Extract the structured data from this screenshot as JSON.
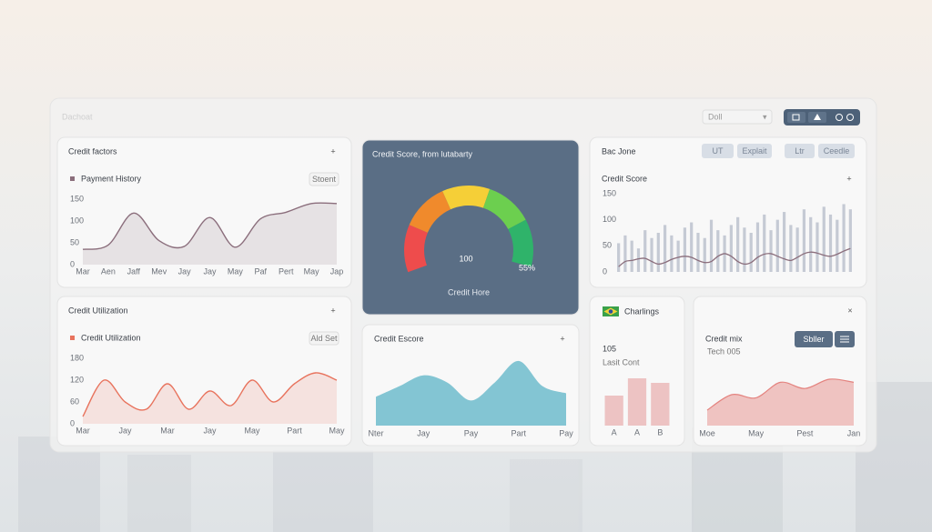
{
  "header": {
    "title": "Dachoat",
    "search": "Doll"
  },
  "chart_data": [
    {
      "type": "line",
      "title": "Credit factors",
      "action": "+",
      "button": "Stoent",
      "categories": [
        "Mar",
        "Aen",
        "Jaff",
        "Mev",
        "Jay",
        "Jay",
        "May",
        "Paf",
        "Pert",
        "May",
        "Jap"
      ],
      "series": [
        {
          "name": "Payment History",
          "color": "#8b6e7c",
          "values": [
            35,
            45,
            118,
            55,
            42,
            108,
            40,
            105,
            120,
            140,
            140
          ]
        }
      ],
      "ylim": [
        0,
        150
      ],
      "yticks": [
        0,
        50,
        100,
        150
      ]
    },
    {
      "type": "gauge",
      "title": "Credit Score, from lutabarty",
      "value": 100,
      "percent": {
        "value": 55,
        "label": "55%"
      },
      "caption": "Credit Hore",
      "colors": [
        "#ee4c4c",
        "#f08a2c",
        "#f5cf37",
        "#6ccf4f",
        "#2fb36a"
      ]
    },
    {
      "type": "bar-line",
      "header": "Bac Jone",
      "tabs": [
        "UT",
        "Explait",
        "Ltr",
        "Ceedle"
      ],
      "title": "Credit Score",
      "action": "+",
      "series": [
        {
          "color": "#c5cad4",
          "values": [
            55,
            70,
            60,
            45,
            80,
            65,
            75,
            90,
            70,
            60,
            85,
            95,
            75,
            65,
            100,
            80,
            70,
            90,
            105,
            85,
            75,
            95,
            110,
            80,
            100,
            115,
            90,
            85,
            120,
            105,
            95,
            125,
            110,
            100,
            130,
            120
          ]
        },
        {
          "color": "#8b6e7c",
          "values": [
            10,
            20,
            22,
            25,
            26,
            20,
            15,
            18,
            24,
            28,
            30,
            28,
            22,
            18,
            20,
            30,
            35,
            30,
            20,
            15,
            18,
            28,
            34,
            35,
            30,
            25,
            22,
            28,
            35,
            38,
            36,
            32,
            30,
            34,
            40,
            45
          ]
        }
      ],
      "ylim": [
        0,
        150
      ],
      "yticks": [
        0,
        50,
        100,
        150
      ]
    },
    {
      "type": "line",
      "title": "Credit Utilization",
      "action": "+",
      "button": "Ald Set",
      "categories": [
        "Mar",
        null,
        "Jay",
        null,
        "Mar",
        null,
        "Jay",
        null,
        "May",
        null,
        "Part",
        null,
        "May"
      ],
      "series": [
        {
          "name": "Credit Utilization",
          "color": "#e8735d",
          "values": [
            20,
            120,
            60,
            40,
            110,
            40,
            90,
            50,
            120,
            60,
            110,
            140,
            120
          ]
        }
      ],
      "ylim": [
        0,
        180
      ],
      "yticks": [
        0,
        60,
        120,
        180
      ]
    },
    {
      "type": "area",
      "title": "Credit Escore",
      "action": "+",
      "categories": [
        "Nter",
        null,
        "Jay",
        null,
        "Pay",
        null,
        "Part",
        null,
        "Pay"
      ],
      "series": [
        {
          "color": "#7cc2d1",
          "values": [
            40,
            55,
            70,
            60,
            35,
            60,
            90,
            55,
            45
          ]
        }
      ],
      "ylim": [
        0,
        100
      ]
    },
    {
      "type": "bar",
      "title": "Charlings",
      "value": 105,
      "caption": "Lasit Cont",
      "categories": [
        "A",
        "A",
        "B"
      ],
      "series": [
        {
          "color": "#eab5b5",
          "values": [
            33,
            52,
            47
          ]
        }
      ],
      "ylim": [
        0,
        60
      ]
    },
    {
      "type": "area",
      "title": "Credit mix",
      "action": "×",
      "subtitle": "Tech 005",
      "button": "Sbller",
      "categories": [
        "Moe",
        null,
        "May",
        null,
        "Pest",
        null,
        "Jan"
      ],
      "series": [
        {
          "color": "#e4837f",
          "values": [
            25,
            50,
            45,
            70,
            60,
            75,
            70
          ]
        }
      ],
      "ylim": [
        0,
        100
      ]
    }
  ]
}
